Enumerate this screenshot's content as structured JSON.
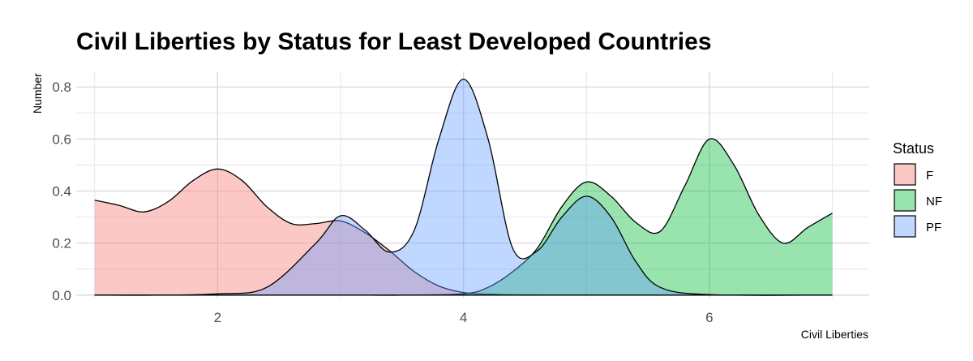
{
  "chart_data": {
    "type": "area",
    "title": "Civil Liberties by Status for Least Developed Countries",
    "xlabel": "Civil Liberties",
    "ylabel": "Number",
    "xlim": [
      0.85,
      7.3
    ],
    "ylim": [
      -0.01,
      0.86
    ],
    "x_ticks": [
      2,
      4,
      6
    ],
    "y_ticks": [
      0.0,
      0.2,
      0.4,
      0.6,
      0.8
    ],
    "y_tick_labels": [
      "0.0",
      "0.2",
      "0.4",
      "0.6",
      "0.8"
    ],
    "grid": true,
    "legend": {
      "title": "Status",
      "position": "right"
    },
    "series": [
      {
        "name": "F",
        "color": "#f8766d",
        "x": [
          1.0,
          1.2,
          1.4,
          1.6,
          1.8,
          2.0,
          2.2,
          2.4,
          2.6,
          2.8,
          3.0,
          3.2,
          3.4,
          3.6,
          3.8,
          4.0,
          4.2,
          4.5,
          5.0,
          6.0,
          7.0
        ],
        "y": [
          0.365,
          0.345,
          0.32,
          0.36,
          0.44,
          0.485,
          0.44,
          0.34,
          0.275,
          0.275,
          0.285,
          0.24,
          0.17,
          0.09,
          0.035,
          0.01,
          0.004,
          0.001,
          0.0,
          0.0,
          0.0
        ]
      },
      {
        "name": "NF",
        "color": "#00ba38",
        "x": [
          1.0,
          2.0,
          3.0,
          3.5,
          4.0,
          4.2,
          4.4,
          4.6,
          4.8,
          5.0,
          5.2,
          5.4,
          5.6,
          5.8,
          6.0,
          6.2,
          6.4,
          6.6,
          6.8,
          7.0
        ],
        "y": [
          0.0,
          0.0,
          0.0,
          0.0,
          0.005,
          0.03,
          0.09,
          0.18,
          0.34,
          0.435,
          0.38,
          0.28,
          0.245,
          0.42,
          0.6,
          0.5,
          0.31,
          0.2,
          0.26,
          0.315
        ]
      },
      {
        "name": "PF",
        "color": "#619cff",
        "x": [
          1.0,
          1.5,
          2.0,
          2.4,
          2.8,
          3.0,
          3.2,
          3.4,
          3.6,
          3.8,
          4.0,
          4.2,
          4.4,
          4.6,
          4.8,
          5.0,
          5.2,
          5.4,
          5.6,
          6.0,
          7.0
        ],
        "y": [
          0.0,
          0.0,
          0.005,
          0.03,
          0.2,
          0.305,
          0.25,
          0.165,
          0.25,
          0.6,
          0.83,
          0.6,
          0.18,
          0.17,
          0.3,
          0.38,
          0.3,
          0.13,
          0.03,
          0.002,
          0.0
        ]
      }
    ]
  }
}
